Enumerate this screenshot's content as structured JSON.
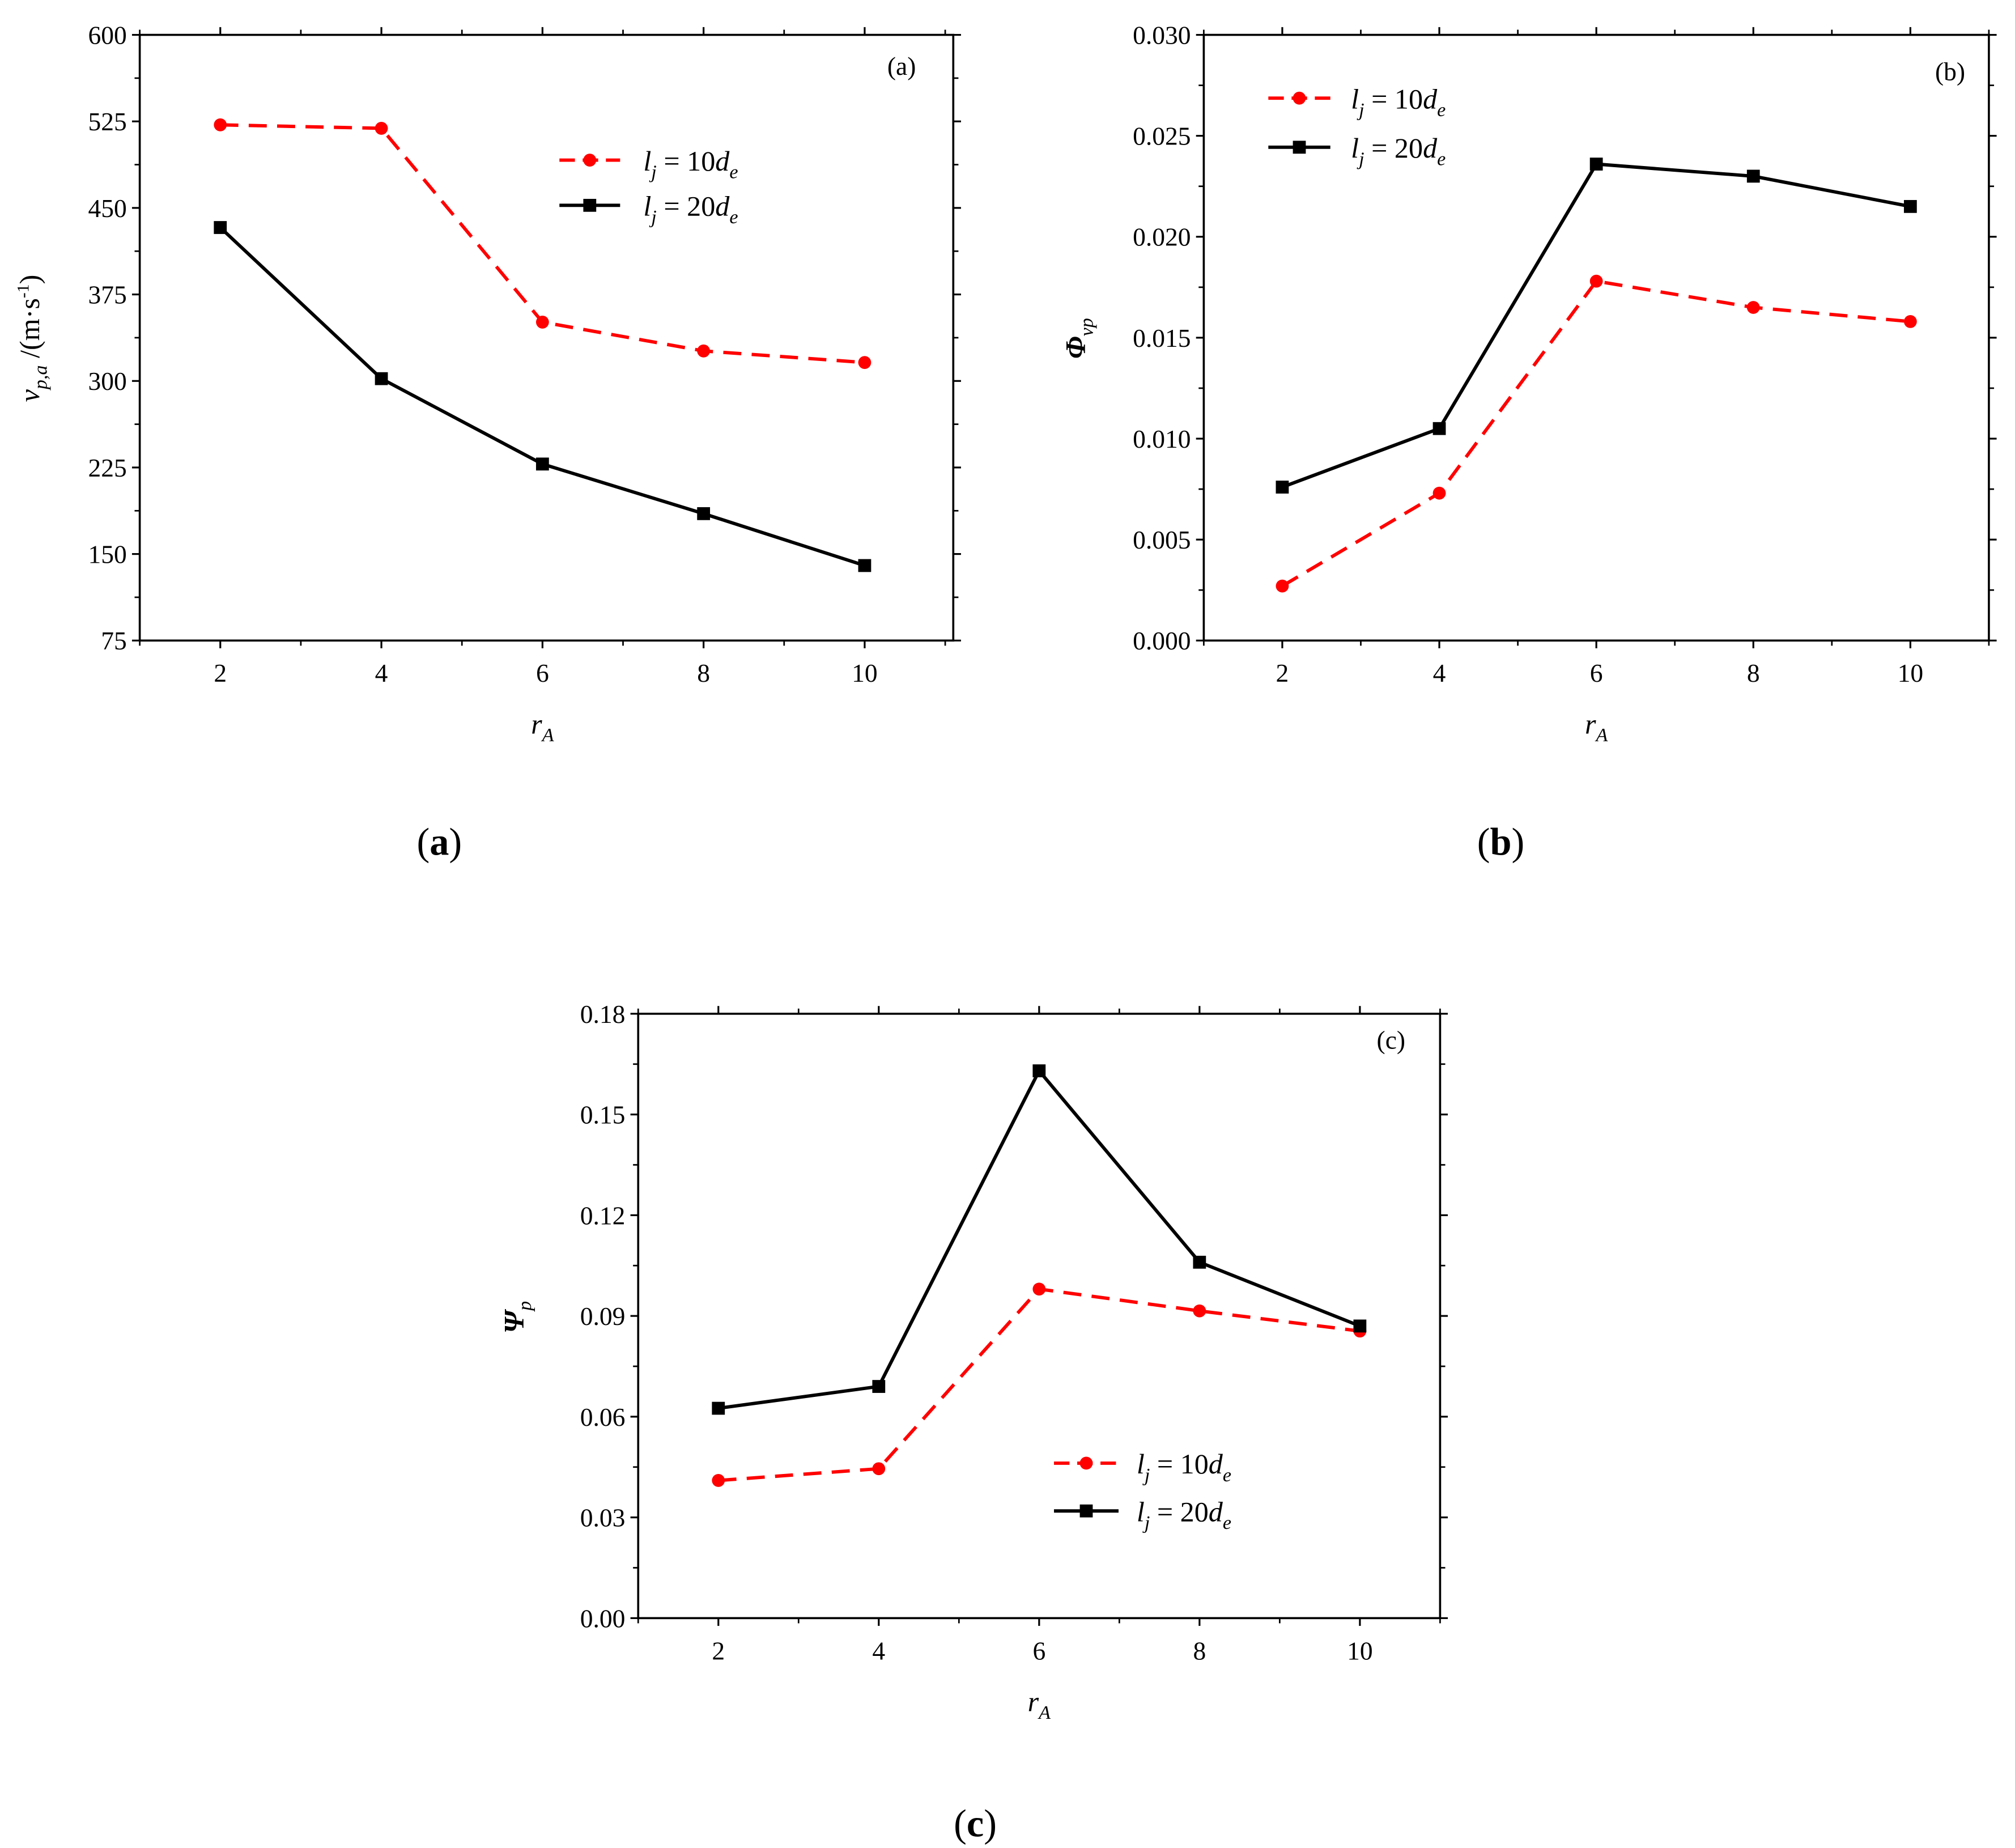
{
  "chart_data": [
    {
      "type": "line",
      "panel_label": "(a)",
      "caption": {
        "open": "(",
        "letter": "a",
        "close": ")"
      },
      "x": [
        2,
        4,
        6,
        8,
        10
      ],
      "xticks": [
        2,
        4,
        6,
        8,
        10
      ],
      "xlim": [
        1,
        11.1
      ],
      "ylim": [
        75,
        600
      ],
      "yticks": [
        "75",
        "150",
        "225",
        "300",
        "375",
        "450",
        "525",
        "600"
      ],
      "xlabel": {
        "main": "r",
        "sub": "A"
      },
      "ylabel": {
        "main": "v",
        "sub": "p,a",
        "rest": " /(m·s",
        "sup": "-1",
        "end": ")"
      },
      "legend_position": "upper-center",
      "series": [
        {
          "name": "l_j = 10d_e",
          "label": {
            "l": "l",
            "j": "j",
            "mid": " = 10",
            "d": "d",
            "e": "e"
          },
          "color": "#ff0000",
          "style": "dashed",
          "marker": "circle",
          "values": [
            522,
            519,
            351,
            326,
            316
          ]
        },
        {
          "name": "l_j = 20d_e",
          "label": {
            "l": "l",
            "j": "j",
            "mid": " = 20",
            "d": "d",
            "e": "e"
          },
          "color": "#000000",
          "style": "solid",
          "marker": "square",
          "values": [
            433,
            302,
            228,
            185,
            140
          ]
        }
      ]
    },
    {
      "type": "line",
      "panel_label": "(b)",
      "caption": {
        "open": "(",
        "letter": "b",
        "close": ")"
      },
      "x": [
        2,
        4,
        6,
        8,
        10
      ],
      "xticks": [
        2,
        4,
        6,
        8,
        10
      ],
      "xlim": [
        1,
        11
      ],
      "ylim": [
        0,
        0.03
      ],
      "yticks": [
        "0.000",
        "0.005",
        "0.010",
        "0.015",
        "0.020",
        "0.025",
        "0.030"
      ],
      "xlabel": {
        "main": "r",
        "sub": "A"
      },
      "ylabel": {
        "main": "Φ",
        "sub": "vp"
      },
      "legend_position": "upper-left",
      "series": [
        {
          "name": "l_j = 10d_e",
          "label": {
            "l": "l",
            "j": "j",
            "mid": " = 10",
            "d": "d",
            "e": "e"
          },
          "color": "#ff0000",
          "style": "dashed",
          "marker": "circle",
          "values": [
            0.0027,
            0.0073,
            0.0178,
            0.0165,
            0.0158
          ]
        },
        {
          "name": "l_j = 20d_e",
          "label": {
            "l": "l",
            "j": "j",
            "mid": " = 20",
            "d": "d",
            "e": "e"
          },
          "color": "#000000",
          "style": "solid",
          "marker": "square",
          "values": [
            0.0076,
            0.0105,
            0.0236,
            0.023,
            0.0215
          ]
        }
      ]
    },
    {
      "type": "line",
      "panel_label": "(c)",
      "caption": {
        "open": "(",
        "letter": "c",
        "close": ")"
      },
      "x": [
        2,
        4,
        6,
        8,
        10
      ],
      "xticks": [
        2,
        4,
        6,
        8,
        10
      ],
      "xlim": [
        1,
        11
      ],
      "ylim": [
        0,
        0.18
      ],
      "yticks": [
        "0.00",
        "0.03",
        "0.06",
        "0.09",
        "0.12",
        "0.15",
        "0.18"
      ],
      "xlabel": {
        "main": "r",
        "sub": "A"
      },
      "ylabel": {
        "main": "Ψ",
        "sub": "p"
      },
      "legend_position": "lower-center",
      "series": [
        {
          "name": "l_j = 10d_e",
          "label": {
            "l": "l",
            "j": "j",
            "mid": " = 10",
            "d": "d",
            "e": "e"
          },
          "color": "#ff0000",
          "style": "dashed",
          "marker": "circle",
          "values": [
            0.041,
            0.0445,
            0.098,
            0.0915,
            0.0855
          ]
        },
        {
          "name": "l_j = 20d_e",
          "label": {
            "l": "l",
            "j": "j",
            "mid": " = 20",
            "d": "d",
            "e": "e"
          },
          "color": "#000000",
          "style": "solid",
          "marker": "square",
          "values": [
            0.0625,
            0.069,
            0.163,
            0.106,
            0.087
          ]
        }
      ]
    }
  ]
}
